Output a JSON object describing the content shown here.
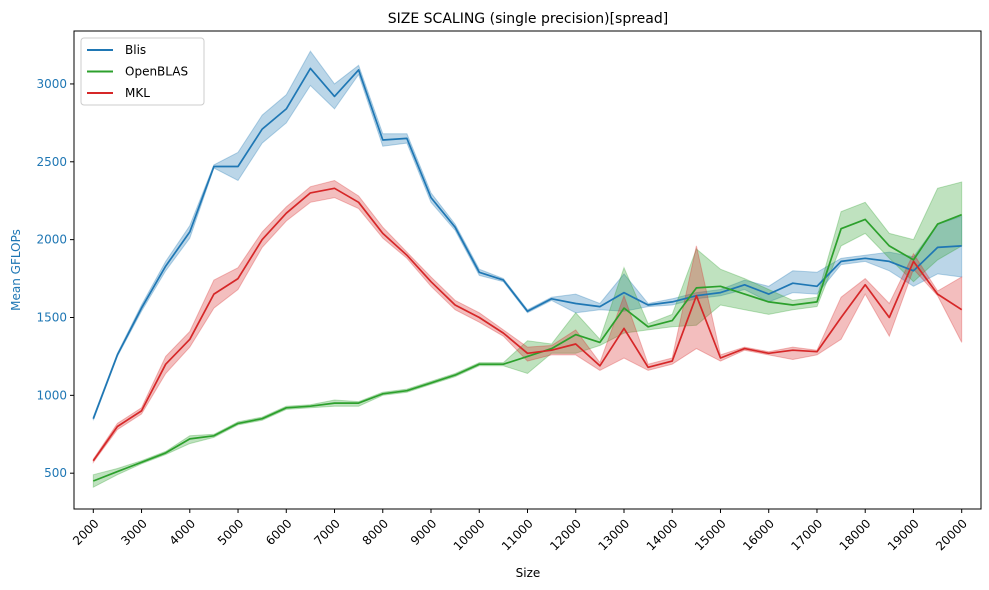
{
  "chart_data": {
    "type": "line",
    "title": "SIZE SCALING (single precision)[spread]",
    "xlabel": "Size",
    "ylabel": "Mean GFLOPs",
    "ylabel_color": "#1f77b4",
    "xlim": [
      1600,
      20400
    ],
    "ylim": [
      270,
      3340
    ],
    "xticks": [
      2000,
      3000,
      4000,
      5000,
      6000,
      7000,
      8000,
      9000,
      10000,
      11000,
      12000,
      13000,
      14000,
      15000,
      16000,
      17000,
      18000,
      19000,
      20000
    ],
    "yticks": [
      500,
      1000,
      1500,
      2000,
      2500,
      3000
    ],
    "legend_position": "top-left",
    "x": [
      2000,
      2500,
      3000,
      3500,
      4000,
      4500,
      5000,
      5500,
      6000,
      6500,
      7000,
      7500,
      8000,
      8500,
      9000,
      9500,
      10000,
      10500,
      11000,
      11500,
      12000,
      12500,
      13000,
      13500,
      14000,
      14500,
      15000,
      15500,
      16000,
      16500,
      17000,
      17500,
      18000,
      18500,
      19000,
      19500,
      20000
    ],
    "series": [
      {
        "name": "Blis",
        "color": "#1f77b4",
        "values": [
          850,
          1260,
          1560,
          1830,
          2050,
          2470,
          2470,
          2710,
          2840,
          3100,
          2920,
          3090,
          2640,
          2650,
          2270,
          2080,
          1790,
          1740,
          1540,
          1620,
          1590,
          1570,
          1660,
          1580,
          1600,
          1640,
          1660,
          1710,
          1650,
          1720,
          1700,
          1860,
          1880,
          1860,
          1800,
          1950,
          1960
        ],
        "lower": [
          840,
          1250,
          1540,
          1800,
          2010,
          2460,
          2380,
          2620,
          2750,
          2990,
          2840,
          3060,
          2600,
          2620,
          2240,
          2060,
          1770,
          1730,
          1530,
          1610,
          1530,
          1550,
          1540,
          1570,
          1580,
          1620,
          1640,
          1680,
          1600,
          1660,
          1650,
          1840,
          1860,
          1800,
          1700,
          1780,
          1760
        ],
        "upper": [
          860,
          1270,
          1580,
          1860,
          2090,
          2480,
          2560,
          2800,
          2930,
          3210,
          3000,
          3120,
          2680,
          2680,
          2300,
          2100,
          1810,
          1750,
          1550,
          1630,
          1650,
          1590,
          1780,
          1590,
          1620,
          1660,
          1680,
          1740,
          1700,
          1800,
          1790,
          1880,
          1900,
          1920,
          1890,
          2100,
          2150
        ]
      },
      {
        "name": "OpenBLAS",
        "color": "#2ca02c",
        "values": [
          450,
          510,
          570,
          630,
          720,
          740,
          820,
          850,
          920,
          930,
          950,
          950,
          1010,
          1030,
          1080,
          1130,
          1200,
          1200,
          1250,
          1300,
          1390,
          1340,
          1560,
          1440,
          1480,
          1690,
          1700,
          1650,
          1600,
          1580,
          1600,
          2070,
          2130,
          1960,
          1870,
          2100,
          2160
        ],
        "lower": [
          410,
          490,
          560,
          620,
          690,
          730,
          810,
          840,
          910,
          920,
          930,
          930,
          1000,
          1020,
          1070,
          1120,
          1190,
          1190,
          1140,
          1270,
          1270,
          1320,
          1400,
          1420,
          1440,
          1450,
          1580,
          1550,
          1520,
          1550,
          1570,
          1960,
          2040,
          1880,
          1730,
          1870,
          1960
        ],
        "upper": [
          490,
          530,
          580,
          640,
          740,
          750,
          830,
          860,
          930,
          940,
          970,
          960,
          1020,
          1040,
          1090,
          1140,
          1210,
          1210,
          1350,
          1330,
          1530,
          1360,
          1820,
          1460,
          1520,
          1940,
          1810,
          1750,
          1680,
          1610,
          1630,
          2180,
          2240,
          2040,
          2000,
          2330,
          2370
        ]
      },
      {
        "name": "MKL",
        "color": "#d62728",
        "values": [
          580,
          800,
          900,
          1200,
          1360,
          1650,
          1750,
          2000,
          2170,
          2300,
          2330,
          2240,
          2040,
          1900,
          1730,
          1580,
          1500,
          1400,
          1270,
          1290,
          1330,
          1190,
          1430,
          1180,
          1220,
          1640,
          1240,
          1300,
          1270,
          1290,
          1280,
          1500,
          1710,
          1500,
          1860,
          1650,
          1550
        ],
        "lower": [
          570,
          780,
          880,
          1140,
          1310,
          1560,
          1680,
          1950,
          2120,
          2240,
          2270,
          2200,
          2010,
          1880,
          1700,
          1550,
          1470,
          1380,
          1220,
          1260,
          1260,
          1160,
          1240,
          1160,
          1200,
          1300,
          1220,
          1290,
          1260,
          1230,
          1260,
          1360,
          1650,
          1380,
          1810,
          1640,
          1340
        ],
        "upper": [
          590,
          820,
          920,
          1250,
          1410,
          1740,
          1820,
          2050,
          2210,
          2340,
          2380,
          2280,
          2080,
          1920,
          1760,
          1610,
          1530,
          1420,
          1310,
          1320,
          1420,
          1210,
          1640,
          1200,
          1240,
          1960,
          1260,
          1310,
          1280,
          1310,
          1290,
          1630,
          1750,
          1590,
          1910,
          1670,
          1760
        ]
      }
    ]
  }
}
